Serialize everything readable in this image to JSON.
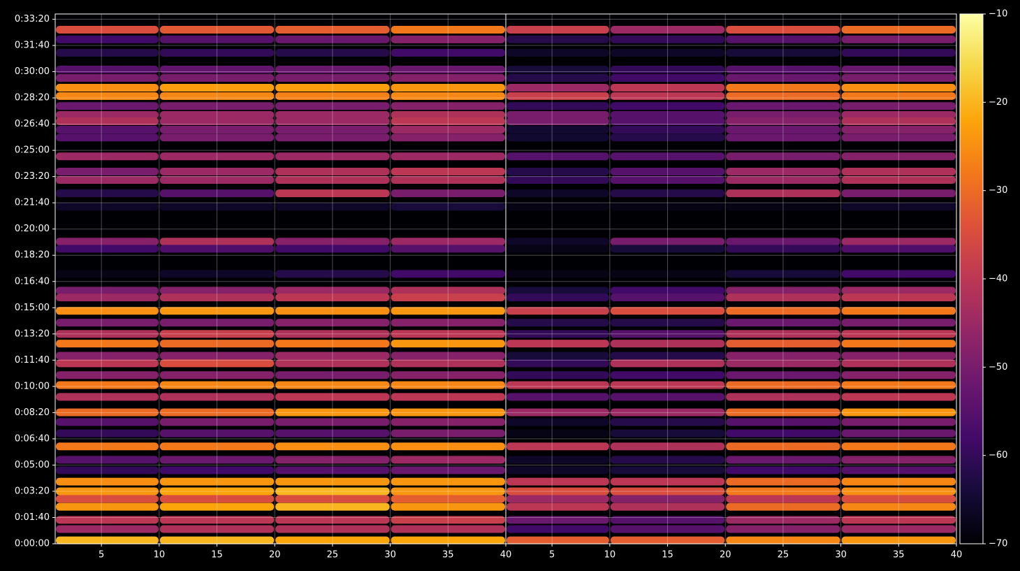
{
  "chart_data": {
    "type": "heatmap",
    "colormap": "inferno",
    "grid": true,
    "clim": [
      -70,
      -10
    ],
    "cbar_ticks": [
      {
        "value": -70,
        "label": "−70"
      },
      {
        "value": -60,
        "label": "−60"
      },
      {
        "value": -50,
        "label": "−50"
      },
      {
        "value": -40,
        "label": "−40"
      },
      {
        "value": -30,
        "label": "−30"
      },
      {
        "value": -20,
        "label": "−20"
      },
      {
        "value": -10,
        "label": "−10"
      }
    ],
    "ylim": [
      0,
      2020
    ],
    "yticks": [
      {
        "value": 0,
        "label": "0:00:00"
      },
      {
        "value": 100,
        "label": "0:01:40"
      },
      {
        "value": 200,
        "label": "0:03:20"
      },
      {
        "value": 300,
        "label": "0:05:00"
      },
      {
        "value": 400,
        "label": "0:06:40"
      },
      {
        "value": 500,
        "label": "0:08:20"
      },
      {
        "value": 600,
        "label": "0:10:00"
      },
      {
        "value": 700,
        "label": "0:11:40"
      },
      {
        "value": 800,
        "label": "0:13:20"
      },
      {
        "value": 900,
        "label": "0:15:00"
      },
      {
        "value": 1000,
        "label": "0:16:40"
      },
      {
        "value": 1100,
        "label": "0:18:20"
      },
      {
        "value": 1200,
        "label": "0:20:00"
      },
      {
        "value": 1300,
        "label": "0:21:40"
      },
      {
        "value": 1400,
        "label": "0:23:20"
      },
      {
        "value": 1500,
        "label": "0:25:00"
      },
      {
        "value": 1600,
        "label": "0:26:40"
      },
      {
        "value": 1700,
        "label": "0:28:20"
      },
      {
        "value": 1800,
        "label": "0:30:00"
      },
      {
        "value": 1900,
        "label": "0:31:40"
      },
      {
        "value": 2000,
        "label": "0:33:20"
      }
    ],
    "rows_y": [
      1960,
      1923,
      1872,
      1808,
      1776,
      1739,
      1707,
      1669,
      1635,
      1611,
      1579,
      1549,
      1477,
      1419,
      1387,
      1336,
      1285,
      1152,
      1125,
      1029,
      965,
      939,
      888,
      843,
      800,
      763,
      717,
      688,
      643,
      605,
      560,
      501,
      464,
      421,
      371,
      320,
      280,
      237,
      200,
      171,
      141,
      91,
      56,
      13
    ],
    "x_groups": [
      1,
      10,
      20,
      30,
      40
    ],
    "panels": [
      {
        "xlim": [
          1,
          40
        ],
        "xticks": [
          5,
          10,
          15,
          20,
          25,
          30,
          35,
          40
        ],
        "values": [
          [
            -35,
            -33,
            -32,
            -28
          ],
          [
            -58,
            -55,
            -52,
            -48
          ],
          [
            -62,
            -60,
            -62,
            -58
          ],
          [
            -55,
            -53,
            -52,
            -52
          ],
          [
            -50,
            -50,
            -50,
            -48
          ],
          [
            -25,
            -23,
            -23,
            -24
          ],
          [
            -26,
            -26,
            -27,
            -26
          ],
          [
            -52,
            -50,
            -50,
            -48
          ],
          [
            -45,
            -45,
            -45,
            -42
          ],
          [
            -42,
            -45,
            -45,
            -40
          ],
          [
            -55,
            -50,
            -50,
            -45
          ],
          [
            -55,
            -50,
            -50,
            -48
          ],
          [
            -45,
            -45,
            -45,
            -45
          ],
          [
            -50,
            -45,
            -42,
            -40
          ],
          [
            -45,
            -45,
            -42,
            -42
          ],
          [
            -62,
            -55,
            -40,
            -50
          ],
          [
            -66,
            -66,
            -66,
            -64
          ],
          [
            -48,
            -42,
            -48,
            -45
          ],
          [
            -58,
            -56,
            -58,
            -55
          ],
          [
            -68,
            -66,
            -62,
            -58
          ],
          [
            -50,
            -48,
            -45,
            -42
          ],
          [
            -45,
            -42,
            -40,
            -38
          ],
          [
            -25,
            -24,
            -25,
            -24
          ],
          [
            -50,
            -50,
            -48,
            -48
          ],
          [
            -42,
            -38,
            -42,
            -40
          ],
          [
            -28,
            -30,
            -28,
            -24
          ],
          [
            -48,
            -48,
            -45,
            -48
          ],
          [
            -40,
            -35,
            -42,
            -42
          ],
          [
            -48,
            -48,
            -50,
            -48
          ],
          [
            -28,
            -26,
            -26,
            -26
          ],
          [
            -42,
            -42,
            -40,
            -40
          ],
          [
            -30,
            -30,
            -24,
            -24
          ],
          [
            -55,
            -50,
            -50,
            -48
          ],
          [
            -60,
            -55,
            -55,
            -50
          ],
          [
            -28,
            -28,
            -25,
            -25
          ],
          [
            -55,
            -52,
            -48,
            -45
          ],
          [
            -60,
            -58,
            -55,
            -52
          ],
          [
            -25,
            -24,
            -24,
            -24
          ],
          [
            -24,
            -22,
            -20,
            -24
          ],
          [
            -35,
            -35,
            -35,
            -32
          ],
          [
            -24,
            -22,
            -20,
            -24
          ],
          [
            -40,
            -40,
            -40,
            -38
          ],
          [
            -45,
            -42,
            -42,
            -42
          ],
          [
            -20,
            -20,
            -22,
            -22
          ]
        ]
      },
      {
        "xlim": [
          1,
          40
        ],
        "xticks": [
          5,
          10,
          15,
          20,
          25,
          30,
          35,
          40
        ],
        "values": [
          [
            -38,
            -45,
            -35,
            -30
          ],
          [
            -62,
            -60,
            -55,
            -50
          ],
          [
            -66,
            -66,
            -64,
            -60
          ],
          [
            -64,
            -60,
            -55,
            -52
          ],
          [
            -62,
            -58,
            -52,
            -50
          ],
          [
            -45,
            -40,
            -28,
            -25
          ],
          [
            -38,
            -40,
            -30,
            -28
          ],
          [
            -60,
            -58,
            -52,
            -50
          ],
          [
            -50,
            -55,
            -50,
            -45
          ],
          [
            -50,
            -55,
            -48,
            -42
          ],
          [
            -65,
            -60,
            -52,
            -48
          ],
          [
            -65,
            -62,
            -52,
            -50
          ],
          [
            -55,
            -55,
            -50,
            -48
          ],
          [
            -62,
            -55,
            -45,
            -42
          ],
          [
            -60,
            -55,
            -45,
            -42
          ],
          [
            -66,
            -62,
            -42,
            -50
          ],
          [
            -68,
            -68,
            -68,
            -66
          ],
          [
            -66,
            -50,
            -52,
            -45
          ],
          [
            -68,
            -64,
            -60,
            -56
          ],
          [
            -68,
            -68,
            -64,
            -58
          ],
          [
            -64,
            -58,
            -48,
            -45
          ],
          [
            -60,
            -55,
            -42,
            -40
          ],
          [
            -38,
            -35,
            -30,
            -28
          ],
          [
            -62,
            -62,
            -52,
            -50
          ],
          [
            -60,
            -55,
            -42,
            -40
          ],
          [
            -40,
            -42,
            -32,
            -28
          ],
          [
            -64,
            -62,
            -48,
            -48
          ],
          [
            -60,
            -42,
            -45,
            -42
          ],
          [
            -60,
            -58,
            -52,
            -48
          ],
          [
            -40,
            -40,
            -30,
            -28
          ],
          [
            -55,
            -55,
            -42,
            -40
          ],
          [
            -45,
            -45,
            -30,
            -24
          ],
          [
            -66,
            -62,
            -55,
            -50
          ],
          [
            -68,
            -64,
            -58,
            -52
          ],
          [
            -40,
            -42,
            -30,
            -28
          ],
          [
            -66,
            -62,
            -52,
            -48
          ],
          [
            -66,
            -64,
            -58,
            -55
          ],
          [
            -40,
            -40,
            -30,
            -26
          ],
          [
            -35,
            -35,
            -28,
            -25
          ],
          [
            -45,
            -48,
            -40,
            -35
          ],
          [
            -40,
            -42,
            -30,
            -26
          ],
          [
            -52,
            -55,
            -45,
            -40
          ],
          [
            -58,
            -55,
            -48,
            -45
          ],
          [
            -32,
            -32,
            -26,
            -24
          ]
        ]
      }
    ]
  }
}
